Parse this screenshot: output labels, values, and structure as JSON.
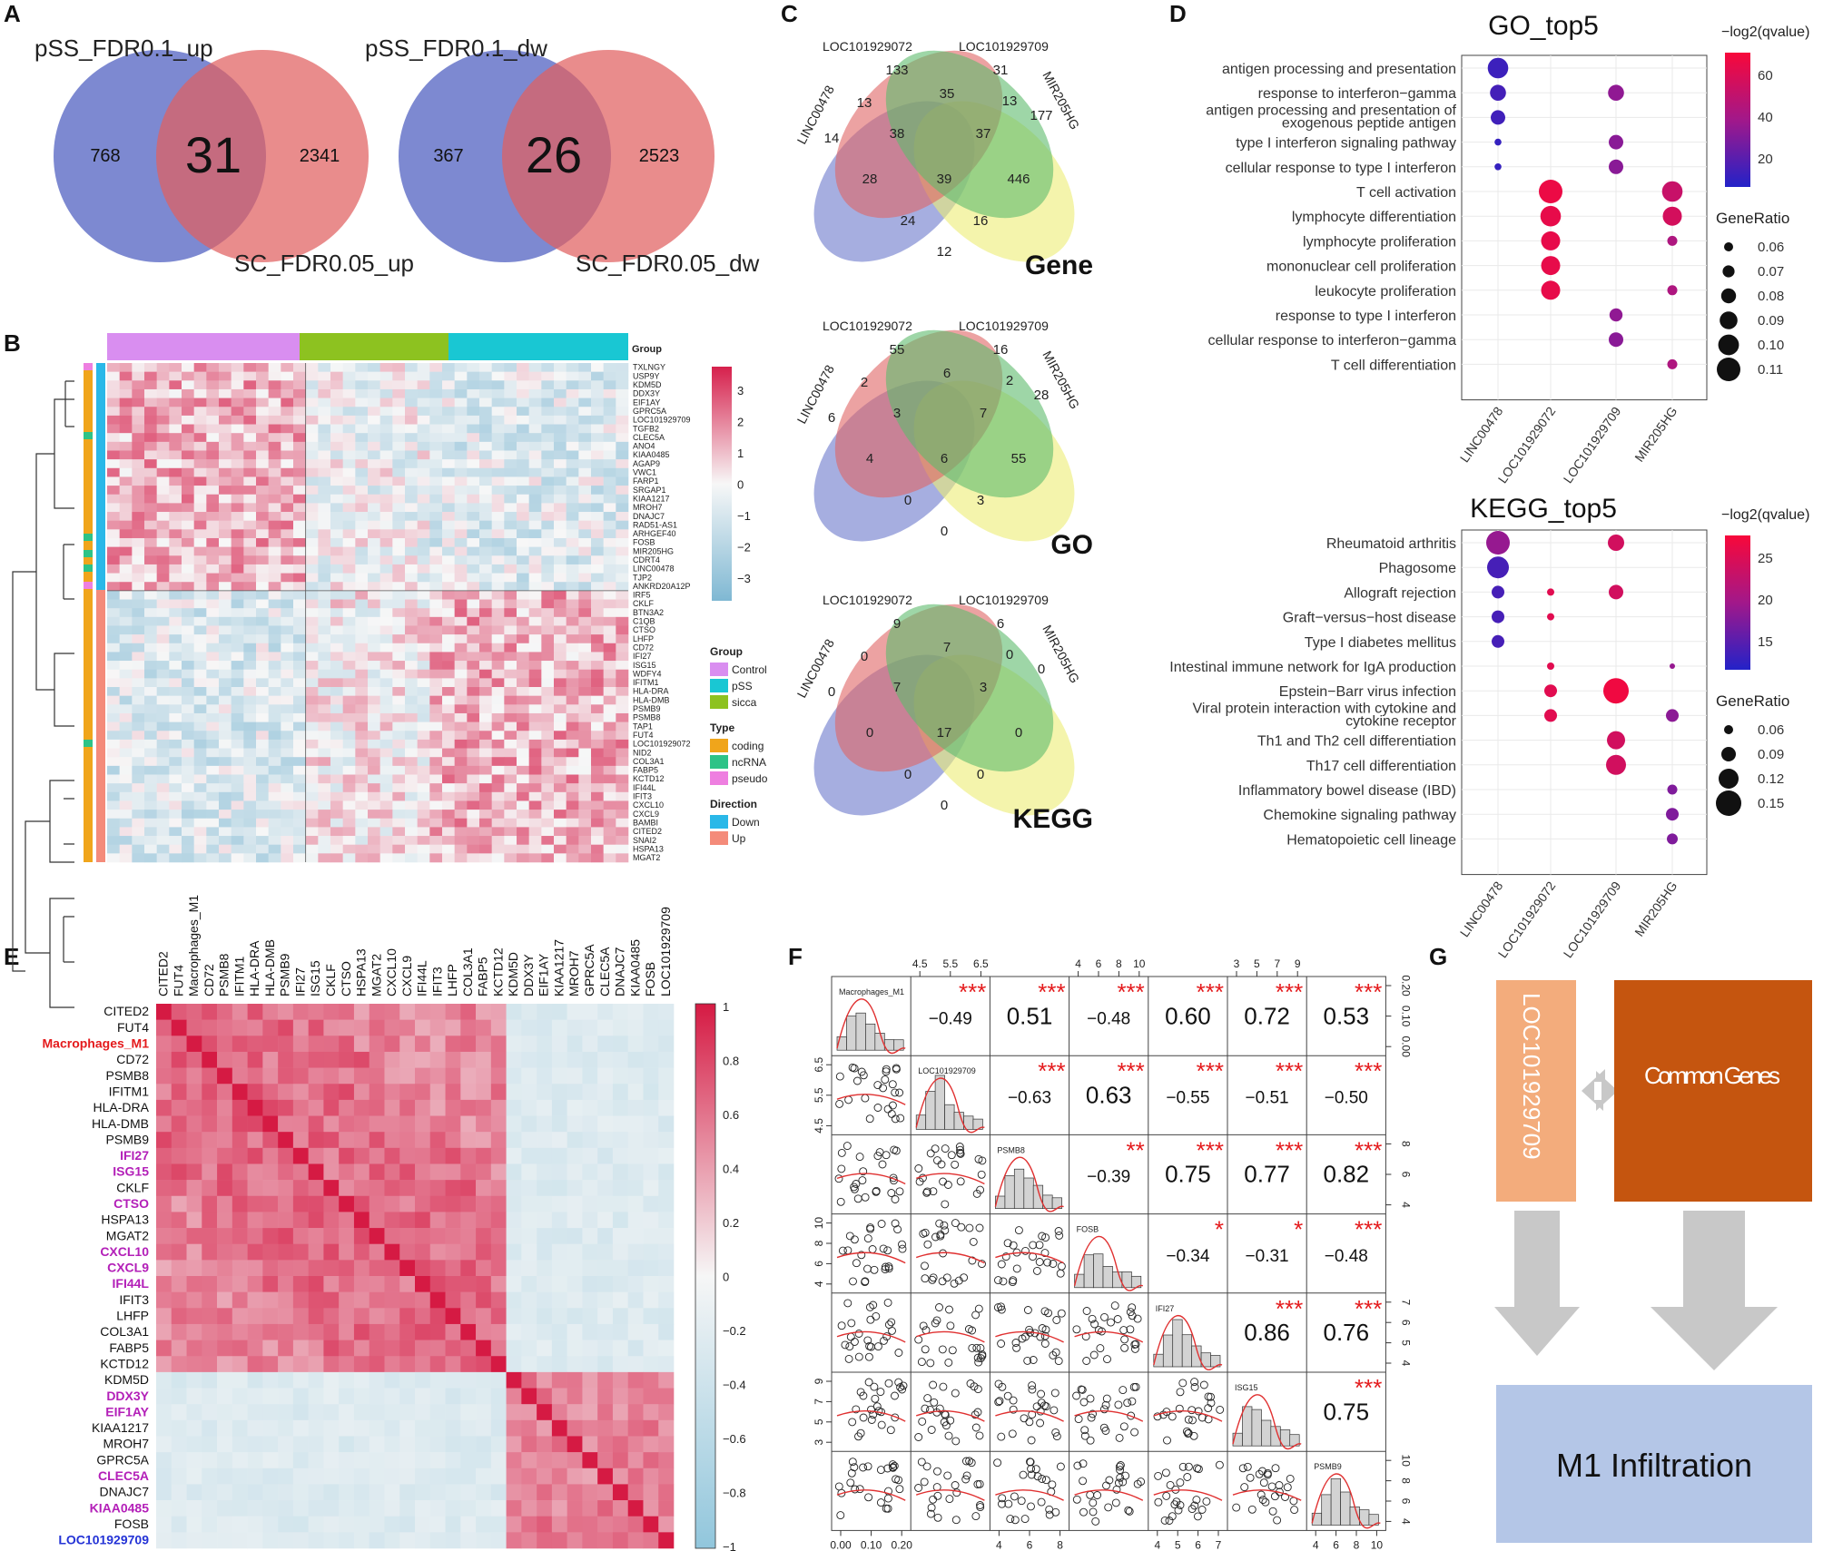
{
  "panel_labels": [
    "A",
    "B",
    "C",
    "D",
    "E",
    "F",
    "G"
  ],
  "A": {
    "up": {
      "left_label": "pSS_FDR0.1_up",
      "right_label": "SC_FDR0.05_up",
      "left_only": "768",
      "overlap": "31",
      "right_only": "2341"
    },
    "down": {
      "left_label": "pSS_FDR0.1_dw",
      "right_label": "SC_FDR0.05_dw",
      "left_only": "367",
      "overlap": "26",
      "right_only": "2523"
    }
  },
  "B": {
    "group_title": "Group",
    "genes": [
      "TXLNGY",
      "USP9Y",
      "KDM5D",
      "DDX3Y",
      "EIF1AY",
      "GPRC5A",
      "LOC101929709",
      "TGFB2",
      "CLEC5A",
      "ANO4",
      "KIAA0485",
      "AGAP9",
      "VWC1",
      "FARP1",
      "SRGAP1",
      "KIAA1217",
      "MROH7",
      "DNAJC7",
      "RAD51-AS1",
      "ARHGEF40",
      "FOSB",
      "MIR205HG",
      "CDRT4",
      "LINC00478",
      "TJP2",
      "ANKRD20A12P",
      "IRF5",
      "CKLF",
      "BTN3A2",
      "C1QB",
      "CTSO",
      "LHFP",
      "CD72",
      "IFI27",
      "ISG15",
      "WDFY4",
      "IFITM1",
      "HLA-DRA",
      "HLA-DMB",
      "PSMB9",
      "PSMB8",
      "TAP1",
      "FUT4",
      "LOC101929072",
      "NID2",
      "COL3A1",
      "FABP5",
      "KCTD12",
      "IFI44L",
      "IFIT3",
      "CXCL10",
      "CXCL9",
      "BAMBI",
      "CITED2",
      "SNAI2",
      "HSPA13",
      "MGAT2"
    ],
    "colorbar_ticks": [
      "3",
      "2",
      "1",
      "0",
      "−1",
      "−2",
      "−3"
    ],
    "legend": {
      "group": {
        "title": "Group",
        "items": [
          {
            "label": "Control",
            "color": "#d98ef0"
          },
          {
            "label": "pSS",
            "color": "#19c7d3"
          },
          {
            "label": "sicca",
            "color": "#8dc220"
          }
        ]
      },
      "type": {
        "title": "Type",
        "items": [
          {
            "label": "coding",
            "color": "#f0a51b"
          },
          {
            "label": "ncRNA",
            "color": "#2dc387"
          },
          {
            "label": "pseudo",
            "color": "#ee7fe0"
          }
        ]
      },
      "direction": {
        "title": "Direction",
        "items": [
          {
            "label": "Down",
            "color": "#2ab8e8"
          },
          {
            "label": "Up",
            "color": "#f48b7a"
          }
        ]
      }
    }
  },
  "C": {
    "sets": [
      "LINC00478",
      "LOC101929072",
      "LOC101929709",
      "MIR205HG"
    ],
    "venns": [
      {
        "title": "Gene",
        "values": [
          "14",
          "133",
          "31",
          "177",
          "13",
          "35",
          "13",
          "38",
          "37",
          "28",
          "446",
          "39",
          "24",
          "16",
          "12"
        ]
      },
      {
        "title": "GO",
        "values": [
          "6",
          "55",
          "16",
          "28",
          "2",
          "6",
          "2",
          "3",
          "7",
          "4",
          "55",
          "6",
          "0",
          "3",
          "0"
        ]
      },
      {
        "title": "KEGG",
        "values": [
          "0",
          "9",
          "6",
          "0",
          "0",
          "7",
          "0",
          "7",
          "3",
          "0",
          "0",
          "17",
          "0",
          "0",
          "0"
        ]
      }
    ]
  },
  "D": {
    "go": {
      "title": "GO_top5",
      "color_title": "−log2(qvalue)",
      "color_ticks": [
        "60",
        "40",
        "20"
      ],
      "size_title": "GeneRatio",
      "size_ticks": [
        "0.06",
        "0.07",
        "0.08",
        "0.09",
        "0.10",
        "0.11"
      ],
      "terms": [
        "antigen processing and presentation",
        "response to interferon−gamma",
        "antigen processing and presentation of exogenous peptide antigen",
        "type I interferon signaling pathway",
        "cellular response to type I interferon",
        "T cell activation",
        "lymphocyte differentiation",
        "lymphocyte proliferation",
        "mononuclear cell proliferation",
        "leukocyte proliferation",
        "response to type I interferon",
        "cellular response to interferon−gamma",
        "T cell differentiation"
      ],
      "xcats": [
        "LINC00478",
        "LOC101929072",
        "LOC101929709",
        "MIR205HG"
      ],
      "points": [
        {
          "x": 0,
          "term": 0,
          "ratio": 0.1,
          "q": 12
        },
        {
          "x": 0,
          "term": 1,
          "ratio": 0.085,
          "q": 14
        },
        {
          "x": 0,
          "term": 2,
          "ratio": 0.08,
          "q": 13
        },
        {
          "x": 0,
          "term": 3,
          "ratio": 0.055,
          "q": 10
        },
        {
          "x": 0,
          "term": 4,
          "ratio": 0.055,
          "q": 10
        },
        {
          "x": 2,
          "term": 1,
          "ratio": 0.085,
          "q": 35
        },
        {
          "x": 2,
          "term": 3,
          "ratio": 0.08,
          "q": 33
        },
        {
          "x": 2,
          "term": 4,
          "ratio": 0.08,
          "q": 33
        },
        {
          "x": 2,
          "term": 10,
          "ratio": 0.075,
          "q": 35
        },
        {
          "x": 2,
          "term": 11,
          "ratio": 0.08,
          "q": 33
        },
        {
          "x": 1,
          "term": 5,
          "ratio": 0.11,
          "q": 70
        },
        {
          "x": 1,
          "term": 6,
          "ratio": 0.1,
          "q": 68
        },
        {
          "x": 1,
          "term": 7,
          "ratio": 0.095,
          "q": 68
        },
        {
          "x": 1,
          "term": 8,
          "ratio": 0.095,
          "q": 68
        },
        {
          "x": 1,
          "term": 9,
          "ratio": 0.095,
          "q": 68
        },
        {
          "x": 3,
          "term": 5,
          "ratio": 0.1,
          "q": 55
        },
        {
          "x": 3,
          "term": 6,
          "ratio": 0.095,
          "q": 60
        },
        {
          "x": 3,
          "term": 7,
          "ratio": 0.065,
          "q": 45
        },
        {
          "x": 3,
          "term": 9,
          "ratio": 0.065,
          "q": 45
        },
        {
          "x": 3,
          "term": 12,
          "ratio": 0.065,
          "q": 45
        }
      ],
      "qlim": [
        5,
        75
      ]
    },
    "kegg": {
      "title": "KEGG_top5",
      "color_title": "−log2(qvalue)",
      "color_ticks": [
        "25",
        "20",
        "15"
      ],
      "size_title": "GeneRatio",
      "size_ticks": [
        "0.06",
        "0.09",
        "0.12",
        "0.15"
      ],
      "terms": [
        "Rheumatoid arthritis",
        "Phagosome",
        "Allograft rejection",
        "Graft−versus−host disease",
        "Type I diabetes mellitus",
        "Intestinal immune network for IgA production",
        "Epstein−Barr virus infection",
        "Viral protein interaction with cytokine and cytokine receptor",
        "Th1 and Th2 cell differentiation",
        "Th17 cell differentiation",
        "Inflammatory bowel disease (IBD)",
        "Chemokine signaling pathway",
        "Hematopoietic cell lineage"
      ],
      "xcats": [
        "LINC00478",
        "LOC101929072",
        "LOC101929709",
        "MIR205HG"
      ],
      "points": [
        {
          "x": 0,
          "term": 0,
          "ratio": 0.15,
          "q": 18
        },
        {
          "x": 0,
          "term": 1,
          "ratio": 0.14,
          "q": 11
        },
        {
          "x": 0,
          "term": 2,
          "ratio": 0.09,
          "q": 11
        },
        {
          "x": 0,
          "term": 3,
          "ratio": 0.09,
          "q": 11
        },
        {
          "x": 0,
          "term": 4,
          "ratio": 0.09,
          "q": 11
        },
        {
          "x": 1,
          "term": 2,
          "ratio": 0.06,
          "q": 27
        },
        {
          "x": 1,
          "term": 3,
          "ratio": 0.06,
          "q": 27
        },
        {
          "x": 1,
          "term": 5,
          "ratio": 0.06,
          "q": 27
        },
        {
          "x": 1,
          "term": 6,
          "ratio": 0.09,
          "q": 27
        },
        {
          "x": 1,
          "term": 7,
          "ratio": 0.09,
          "q": 27
        },
        {
          "x": 2,
          "term": 0,
          "ratio": 0.11,
          "q": 25
        },
        {
          "x": 2,
          "term": 2,
          "ratio": 0.1,
          "q": 25
        },
        {
          "x": 2,
          "term": 6,
          "ratio": 0.16,
          "q": 29
        },
        {
          "x": 2,
          "term": 8,
          "ratio": 0.12,
          "q": 25
        },
        {
          "x": 2,
          "term": 9,
          "ratio": 0.13,
          "q": 25
        },
        {
          "x": 3,
          "term": 5,
          "ratio": 0.05,
          "q": 18
        },
        {
          "x": 3,
          "term": 7,
          "ratio": 0.09,
          "q": 17
        },
        {
          "x": 3,
          "term": 10,
          "ratio": 0.075,
          "q": 16
        },
        {
          "x": 3,
          "term": 11,
          "ratio": 0.09,
          "q": 16
        },
        {
          "x": 3,
          "term": 12,
          "ratio": 0.08,
          "q": 16
        }
      ],
      "qlim": [
        8,
        30
      ]
    }
  },
  "E": {
    "labels": [
      "CITED2",
      "FUT4",
      "Macrophages_M1",
      "CD72",
      "PSMB8",
      "IFITM1",
      "HLA-DRA",
      "HLA-DMB",
      "PSMB9",
      "IFI27",
      "ISG15",
      "CKLF",
      "CTSO",
      "HSPA13",
      "MGAT2",
      "CXCL10",
      "CXCL9",
      "IFI44L",
      "IFIT3",
      "LHFP",
      "COL3A1",
      "FABP5",
      "KCTD12",
      "KDM5D",
      "DDX3Y",
      "EIF1AY",
      "KIAA1217",
      "MROH7",
      "GPRC5A",
      "CLEC5A",
      "DNAJC7",
      "KIAA0485",
      "FOSB",
      "LOC101929709"
    ],
    "label_colors": {
      "Macrophages_M1": "#e41a1c",
      "IFI27": "#b31fb8",
      "ISG15": "#b31fb8",
      "CTSO": "#b31fb8",
      "CXCL10": "#b31fb8",
      "CXCL9": "#b31fb8",
      "IFI44L": "#b31fb8",
      "DDX3Y": "#b31fb8",
      "EIF1AY": "#b31fb8",
      "CLEC5A": "#b31fb8",
      "KIAA0485": "#b31fb8",
      "LOC101929709": "#2433d6"
    },
    "colorbar_ticks": [
      "1",
      "0.8",
      "0.6",
      "0.4",
      "0.2",
      "0",
      "−0.2",
      "−0.4",
      "−0.6",
      "−0.8",
      "−1"
    ]
  },
  "F": {
    "vars": [
      "Macrophages_M1",
      "LOC101929709",
      "PSMB8",
      "FOSB",
      "IFI27",
      "ISG15",
      "PSMB9"
    ],
    "correlations": [
      {
        "r": 0,
        "c": 1,
        "value": "−0.49",
        "stars": "***",
        "big": false
      },
      {
        "r": 0,
        "c": 2,
        "value": "0.51",
        "stars": "***",
        "big": true
      },
      {
        "r": 0,
        "c": 3,
        "value": "−0.48",
        "stars": "***",
        "big": false
      },
      {
        "r": 0,
        "c": 4,
        "value": "0.60",
        "stars": "***",
        "big": true
      },
      {
        "r": 0,
        "c": 5,
        "value": "0.72",
        "stars": "***",
        "big": true
      },
      {
        "r": 0,
        "c": 6,
        "value": "0.53",
        "stars": "***",
        "big": true
      },
      {
        "r": 1,
        "c": 2,
        "value": "−0.63",
        "stars": "***",
        "big": false
      },
      {
        "r": 1,
        "c": 3,
        "value": "0.63",
        "stars": "***",
        "big": true
      },
      {
        "r": 1,
        "c": 4,
        "value": "−0.55",
        "stars": "***",
        "big": false
      },
      {
        "r": 1,
        "c": 5,
        "value": "−0.51",
        "stars": "***",
        "big": false
      },
      {
        "r": 1,
        "c": 6,
        "value": "−0.50",
        "stars": "***",
        "big": false
      },
      {
        "r": 2,
        "c": 3,
        "value": "−0.39",
        "stars": "**",
        "big": false
      },
      {
        "r": 2,
        "c": 4,
        "value": "0.75",
        "stars": "***",
        "big": true
      },
      {
        "r": 2,
        "c": 5,
        "value": "0.77",
        "stars": "***",
        "big": true
      },
      {
        "r": 2,
        "c": 6,
        "value": "0.82",
        "stars": "***",
        "big": true
      },
      {
        "r": 3,
        "c": 4,
        "value": "−0.34",
        "stars": "*",
        "big": false
      },
      {
        "r": 3,
        "c": 5,
        "value": "−0.31",
        "stars": "*",
        "big": false
      },
      {
        "r": 3,
        "c": 6,
        "value": "−0.48",
        "stars": "***",
        "big": false
      },
      {
        "r": 4,
        "c": 5,
        "value": "0.86",
        "stars": "***",
        "big": true
      },
      {
        "r": 4,
        "c": 6,
        "value": "0.76",
        "stars": "***",
        "big": true
      },
      {
        "r": 5,
        "c": 6,
        "value": "0.75",
        "stars": "***",
        "big": true
      }
    ],
    "top_ticks": {
      "1": [
        "4.5",
        "5.5",
        "6.5"
      ],
      "3": [
        "4",
        "6",
        "8",
        "10"
      ],
      "5": [
        "3",
        "5",
        "7",
        "9"
      ]
    },
    "bottom_ticks": {
      "0": [
        "0.00",
        "0.10",
        "0.20"
      ],
      "2": [
        "4",
        "6",
        "8"
      ],
      "4": [
        "4",
        "5",
        "6",
        "7"
      ],
      "6": [
        "4",
        "6",
        "8",
        "10"
      ]
    },
    "left_ticks": {
      "1": [
        "6.5",
        "5.5",
        "4.5"
      ],
      "3": [
        "10",
        "8",
        "6",
        "4"
      ],
      "5": [
        "9",
        "7",
        "5",
        "3"
      ]
    },
    "right_ticks": {
      "0": [
        "0.20",
        "0.10",
        "0.00"
      ],
      "2": [
        "8",
        "6",
        "4"
      ],
      "4": [
        "7",
        "6",
        "5",
        "4"
      ],
      "6": [
        "10",
        "8",
        "6",
        "4"
      ]
    }
  },
  "G": {
    "lnc_label": "LOC101929709",
    "common_label": "Common Genes",
    "m1_label": "M1 Infiltration"
  }
}
